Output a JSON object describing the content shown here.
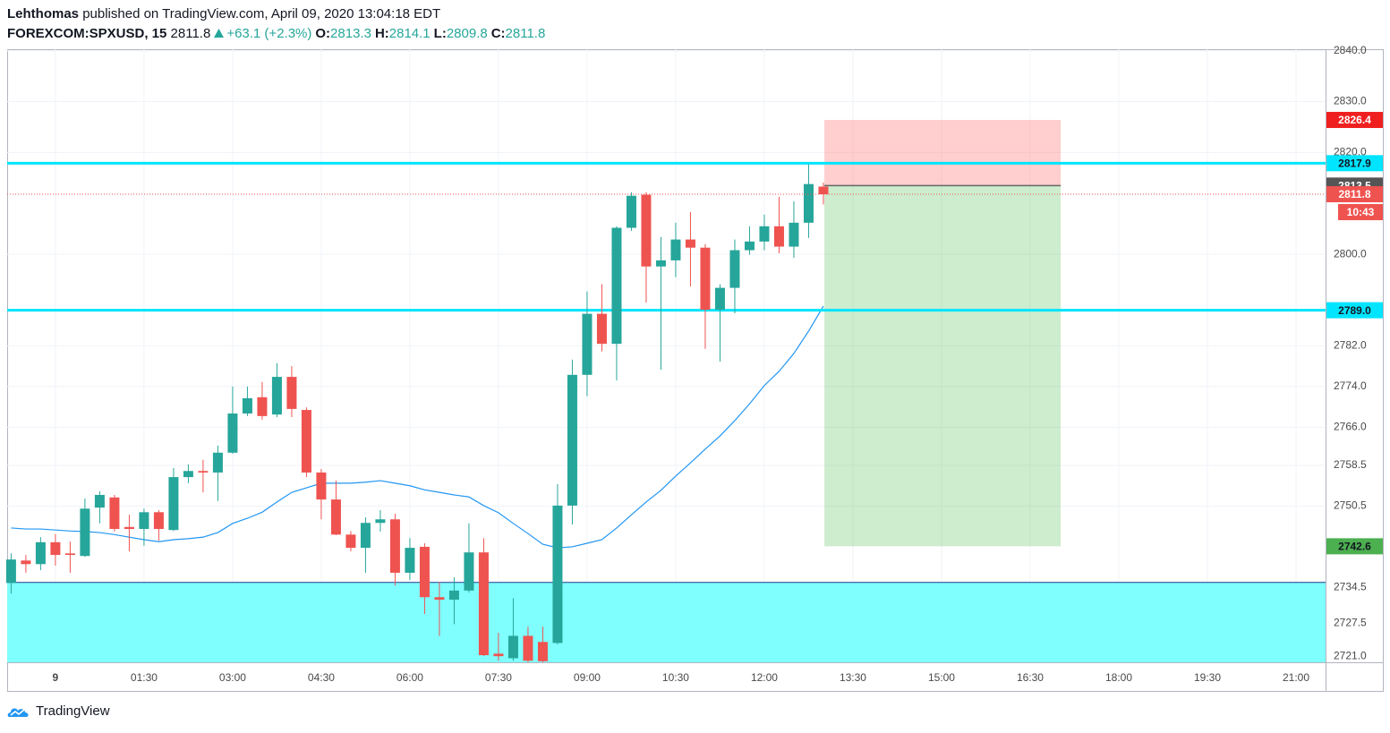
{
  "header": {
    "author": "Lehthomas",
    "published": "published on TradingView.com, April 09, 2020 13:04:18 EDT"
  },
  "legend": {
    "symbol": "FOREXCOM:SPXUSD, 15",
    "last": 2811.8,
    "change": "+63.1 (+2.3%)",
    "ohlc": [
      {
        "label": "O:",
        "value": 2813.3
      },
      {
        "label": "H:",
        "value": 2814.1
      },
      {
        "label": "L:",
        "value": 2809.8
      },
      {
        "label": "C:",
        "value": 2811.8
      }
    ]
  },
  "footer": {
    "brand": "TradingView"
  },
  "chart_data": {
    "type": "candlestick",
    "up_color": "#26a69a",
    "down_color": "#ef5350",
    "x": [
      -45,
      -30,
      -15,
      0,
      15,
      30,
      45,
      60,
      75,
      90,
      105,
      120,
      135,
      150,
      165,
      180,
      195,
      210,
      225,
      240,
      255,
      270,
      285,
      300,
      315,
      330,
      345,
      360,
      375,
      390,
      405,
      420,
      435,
      450,
      465,
      480,
      495,
      510,
      525,
      540,
      555,
      570,
      585,
      600,
      615,
      630,
      645,
      660,
      675,
      690,
      705,
      720,
      735,
      750,
      765,
      780
    ],
    "open": [
      2735.4,
      2739.8,
      2739.1,
      2743.4,
      2741.2,
      2740.7,
      2750.2,
      2752.2,
      2746.4,
      2746.0,
      2749.3,
      2745.8,
      2756.2,
      2757.4,
      2757.1,
      2761.0,
      2768.7,
      2771.9,
      2768.5,
      2775.9,
      2769.4,
      2757.1,
      2751.8,
      2744.9,
      2742.3,
      2747.2,
      2747.9,
      2737.4,
      2742.5,
      2732.6,
      2732.1,
      2733.9,
      2741.4,
      2721.5,
      2720.6,
      2725.0,
      2723.8,
      2723.6,
      2750.6,
      2776.3,
      2788.3,
      2782.4,
      2805.2,
      2811.7,
      2797.6,
      2798.8,
      2802.9,
      2801.3,
      2789.1,
      2793.4,
      2800.8,
      2802.5,
      2805.5,
      2801.5,
      2806.2,
      2813.3
    ],
    "high": [
      2741.2,
      2740.9,
      2744.4,
      2745.0,
      2743.5,
      2752.0,
      2753.4,
      2752.7,
      2748.8,
      2750.0,
      2749.7,
      2758.0,
      2758.7,
      2759.6,
      2762.4,
      2774.0,
      2774.0,
      2774.9,
      2778.6,
      2778.0,
      2769.9,
      2757.8,
      2755.5,
      2745.6,
      2748.3,
      2749.7,
      2749.0,
      2744.2,
      2743.2,
      2735.6,
      2736.5,
      2747.1,
      2744.2,
      2725.6,
      2732.4,
      2726.8,
      2726.8,
      2754.8,
      2779.3,
      2792.7,
      2794.1,
      2805.5,
      2812.2,
      2812.2,
      2803.4,
      2806.2,
      2808.3,
      2802.0,
      2794.1,
      2802.9,
      2805.5,
      2807.8,
      2811.3,
      2810.4,
      2817.7,
      2814.1
    ],
    "low": [
      2733.3,
      2737.4,
      2737.9,
      2738.8,
      2737.4,
      2740.5,
      2747.1,
      2745.5,
      2741.6,
      2742.7,
      2743.7,
      2745.6,
      2755.0,
      2753.2,
      2751.5,
      2760.8,
      2768.2,
      2767.5,
      2768.0,
      2768.0,
      2756.2,
      2747.9,
      2744.8,
      2741.6,
      2737.4,
      2745.5,
      2734.9,
      2736.0,
      2729.3,
      2725.0,
      2727.3,
      2733.5,
      2721.0,
      2720.1,
      2720.1,
      2719.8,
      2719.8,
      2723.3,
      2746.9,
      2772.1,
      2780.9,
      2775.2,
      2804.6,
      2790.5,
      2777.3,
      2795.5,
      2793.7,
      2781.4,
      2778.9,
      2788.4,
      2799.9,
      2800.8,
      2800.2,
      2799.3,
      2803.2,
      2809.8
    ],
    "close": [
      2740.0,
      2739.1,
      2743.4,
      2740.9,
      2740.9,
      2750.0,
      2752.7,
      2746.0,
      2746.0,
      2749.3,
      2746.0,
      2756.2,
      2757.4,
      2757.1,
      2761.0,
      2768.7,
      2771.7,
      2768.2,
      2775.9,
      2769.6,
      2757.1,
      2751.8,
      2744.9,
      2742.3,
      2747.2,
      2747.9,
      2737.4,
      2742.3,
      2732.6,
      2732.1,
      2733.9,
      2741.4,
      2721.2,
      2721.0,
      2725.0,
      2720.1,
      2720.0,
      2750.6,
      2776.3,
      2788.3,
      2782.4,
      2805.2,
      2811.5,
      2797.6,
      2798.8,
      2802.9,
      2801.3,
      2789.1,
      2793.4,
      2800.8,
      2802.5,
      2805.5,
      2801.5,
      2806.2,
      2813.8,
      2811.8
    ],
    "moving_average": {
      "color": "#2196f3",
      "values": [
        2746.2,
        2746.0,
        2746.0,
        2745.8,
        2745.6,
        2745.5,
        2745.3,
        2744.9,
        2744.4,
        2743.9,
        2743.5,
        2743.9,
        2744.1,
        2744.4,
        2745.3,
        2747.1,
        2748.1,
        2749.3,
        2751.3,
        2753.2,
        2754.1,
        2755.0,
        2755.0,
        2755.0,
        2755.2,
        2755.5,
        2755.0,
        2754.5,
        2753.7,
        2753.2,
        2752.7,
        2752.3,
        2750.6,
        2749.2,
        2747.1,
        2745.1,
        2743.0,
        2742.3,
        2742.5,
        2743.2,
        2743.9,
        2746.2,
        2748.8,
        2751.3,
        2753.6,
        2756.4,
        2759.0,
        2761.7,
        2764.3,
        2767.3,
        2770.6,
        2774.2,
        2777.0,
        2780.5,
        2784.9,
        2789.8
      ]
    },
    "levels": {
      "color": "#00e5ff",
      "values": [
        2817.9,
        2789
      ],
      "value_labels": [
        "2817.9",
        "2789.0"
      ]
    },
    "zone": {
      "top": 2735.5,
      "color": "#80ffff"
    },
    "position": {
      "stop": 2826.4,
      "entry": 2813.5,
      "target": 2742.6,
      "x_start": 781,
      "x_end": 1021,
      "stop_color": "#f01f1f",
      "target_color": "#4caf50"
    },
    "price_line": {
      "value": 2811.8,
      "countdown": "10:43",
      "color": "#ef5350"
    },
    "xlim": [
      -49,
      1290
    ],
    "ylim": [
      2719.8,
      2840.3
    ],
    "xticks": [
      {
        "value": 0,
        "label": "9"
      },
      {
        "value": 90,
        "label": "01:30"
      },
      {
        "value": 180,
        "label": "03:00"
      },
      {
        "value": 270,
        "label": "04:30"
      },
      {
        "value": 360,
        "label": "06:00"
      },
      {
        "value": 450,
        "label": "07:30"
      },
      {
        "value": 540,
        "label": "09:00"
      },
      {
        "value": 630,
        "label": "10:30"
      },
      {
        "value": 720,
        "label": "12:00"
      },
      {
        "value": 810,
        "label": "13:30"
      },
      {
        "value": 900,
        "label": "15:00"
      },
      {
        "value": 990,
        "label": "16:30"
      },
      {
        "value": 1080,
        "label": "18:00"
      },
      {
        "value": 1170,
        "label": "19:30"
      },
      {
        "value": 1260,
        "label": "21:00"
      }
    ],
    "yticks": [
      {
        "value": 2840,
        "label": "2840.0"
      },
      {
        "value": 2830,
        "label": "2830.0"
      },
      {
        "value": 2820,
        "label": "2820.0"
      },
      {
        "value": 2800,
        "label": "2800.0"
      },
      {
        "value": 2782,
        "label": "2782.0"
      },
      {
        "value": 2774,
        "label": "2774.0"
      },
      {
        "value": 2766,
        "label": "2766.0"
      },
      2758.5,
      2750.5,
      2734.5,
      2727.5,
      {
        "value": 2721,
        "label": "2721.0"
      }
    ],
    "grid": true
  }
}
